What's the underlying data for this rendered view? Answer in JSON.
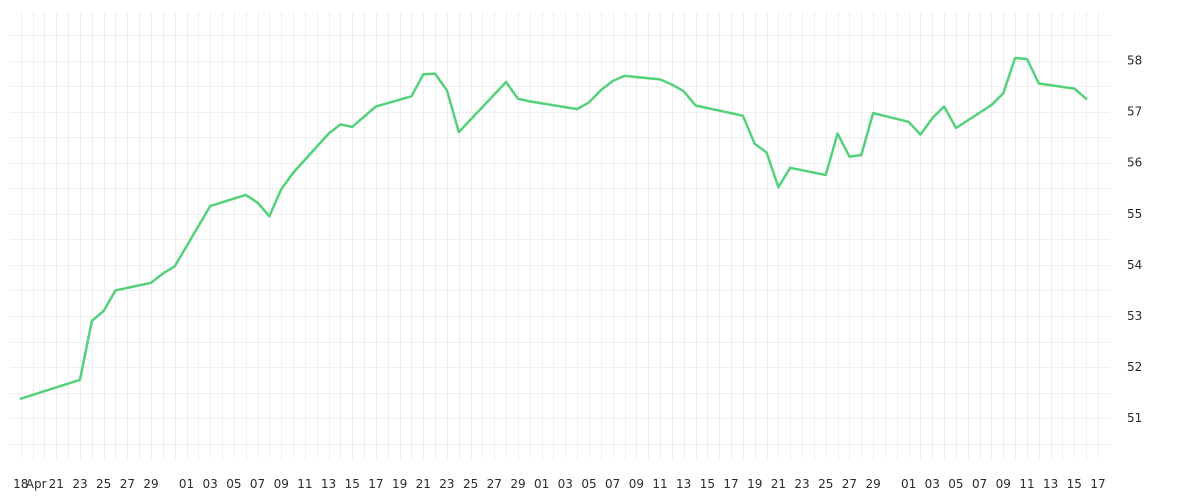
{
  "chart_data": {
    "type": "line",
    "title": "",
    "xlabel": "",
    "ylabel": "",
    "grid": true,
    "ylim": [
      50.2,
      58.95
    ],
    "y_ticks": [
      51,
      52,
      53,
      54,
      55,
      56,
      57,
      58
    ],
    "x_tick_labels": [
      "18",
      "Apr",
      "21",
      "23",
      "25",
      "27",
      "29",
      "01",
      "03",
      "05",
      "07",
      "09",
      "11",
      "13",
      "15",
      "17",
      "19",
      "21",
      "23",
      "25",
      "27",
      "29",
      "01",
      "03",
      "05",
      "07",
      "09",
      "11",
      "13",
      "15",
      "17",
      "19",
      "21",
      "23",
      "25",
      "27",
      "29",
      "01",
      "03",
      "05",
      "07",
      "09",
      "11",
      "13",
      "15",
      "17"
    ],
    "series": [
      {
        "color": "#55d17c",
        "x": [
          "2025-03-18",
          "2025-03-23",
          "2025-03-24",
          "2025-03-25",
          "2025-03-26",
          "2025-03-29",
          "2025-03-30",
          "2025-03-31",
          "2025-04-03",
          "2025-04-06",
          "2025-04-07",
          "2025-04-08",
          "2025-04-09",
          "2025-04-10",
          "2025-04-13",
          "2025-04-14",
          "2025-04-15",
          "2025-04-17",
          "2025-04-20",
          "2025-04-21",
          "2025-04-22",
          "2025-04-23",
          "2025-04-24",
          "2025-04-28",
          "2025-04-29",
          "2025-04-30",
          "2025-05-04",
          "2025-05-05",
          "2025-05-06",
          "2025-05-07",
          "2025-05-08",
          "2025-05-11",
          "2025-05-12",
          "2025-05-13",
          "2025-05-14",
          "2025-05-18",
          "2025-05-19",
          "2025-05-20",
          "2025-05-21",
          "2025-05-22",
          "2025-05-25",
          "2025-05-26",
          "2025-05-27",
          "2025-05-28",
          "2025-05-29",
          "2025-06-01",
          "2025-06-02",
          "2025-06-03",
          "2025-06-04",
          "2025-06-05",
          "2025-06-08",
          "2025-06-09",
          "2025-06-10",
          "2025-06-11",
          "2025-06-12",
          "2025-06-15",
          "2025-06-16"
        ],
        "values": [
          51.38,
          51.75,
          52.9,
          53.1,
          53.5,
          53.65,
          53.83,
          53.97,
          55.15,
          55.37,
          55.22,
          54.95,
          55.48,
          55.8,
          56.57,
          56.75,
          56.7,
          57.1,
          57.3,
          57.73,
          57.74,
          57.42,
          56.6,
          57.58,
          57.25,
          57.2,
          57.05,
          57.18,
          57.42,
          57.6,
          57.7,
          57.63,
          57.53,
          57.4,
          57.12,
          56.92,
          56.37,
          56.2,
          55.52,
          55.9,
          55.76,
          56.57,
          56.12,
          56.15,
          56.97,
          56.8,
          56.55,
          56.87,
          57.1,
          56.68,
          57.13,
          57.36,
          58.05,
          58.03,
          57.55,
          57.45,
          57.25
        ]
      }
    ]
  }
}
